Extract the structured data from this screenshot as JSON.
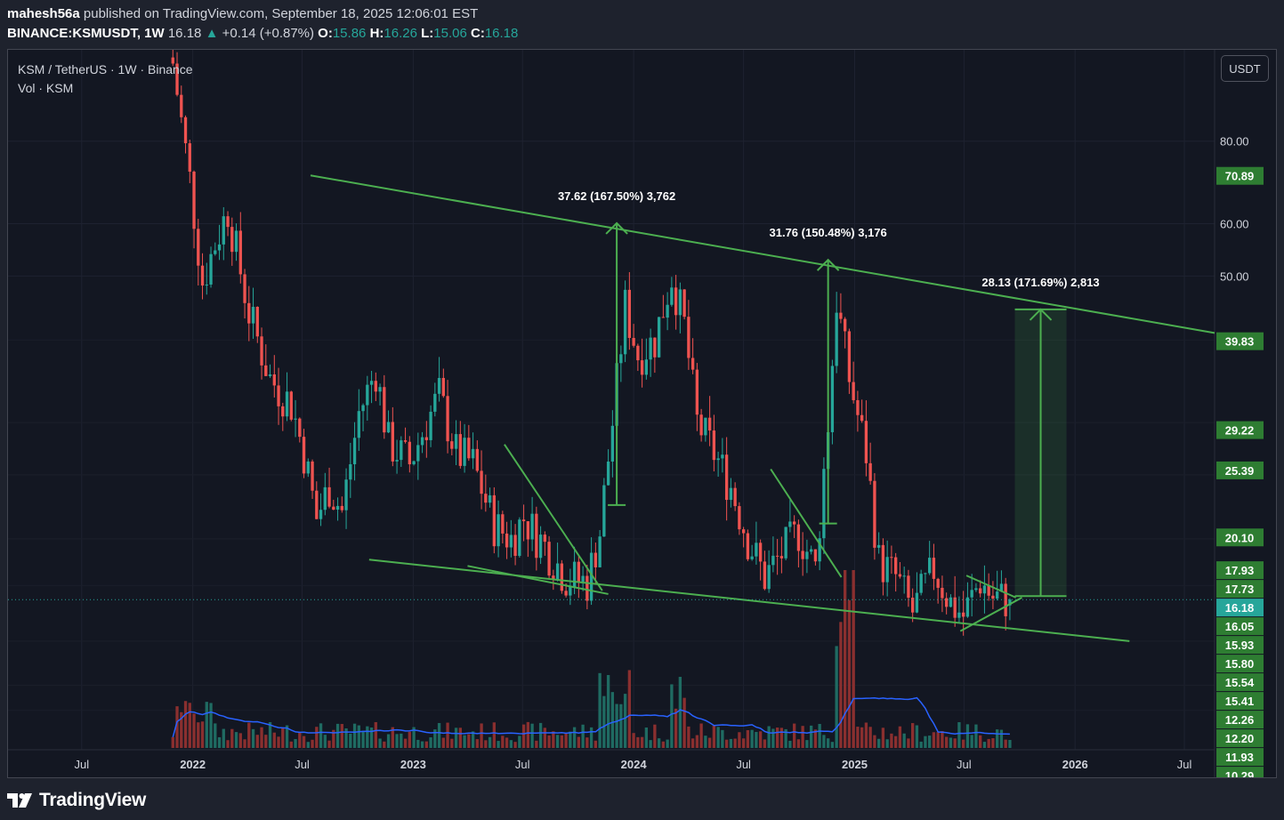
{
  "header": {
    "author": "mahesh56a",
    "published_text": "published on TradingView.com, September 18, 2025 12:06:01 EST",
    "symbol": "BINANCE:KSMUSDT, 1W",
    "last": "16.18",
    "change_arrow": "▲",
    "change": "+0.14 (+0.87%)",
    "o_label": "O:",
    "o_value": "15.86",
    "h_label": "H:",
    "h_value": "16.26",
    "l_label": "L:",
    "l_value": "15.06",
    "c_label": "C:",
    "c_value": "16.18"
  },
  "legend": {
    "title": "KSM / TetherUS · 1W · Binance",
    "volume": "Vol · KSM"
  },
  "currency_button": "USDT",
  "footer": {
    "brand": "TradingView",
    "logo_icon": "tradingview-logo-icon"
  },
  "colors": {
    "up": "#26a69a",
    "down": "#ef5350",
    "drawing": "#4caf50",
    "volume_ma": "#2962ff",
    "background": "#131722"
  },
  "chart_data": {
    "type": "candlestick",
    "symbol": "KSM / TetherUS",
    "interval": "1W",
    "y_scale": "log",
    "ylim": [
      9.5,
      110
    ],
    "y_ticks": [
      80,
      60,
      50
    ],
    "y_tick_labels": [
      "80.00",
      "60.00",
      "50.00"
    ],
    "x_tick_labels": [
      "Jul",
      "2022",
      "Jul",
      "2023",
      "Jul",
      "2024",
      "Jul",
      "2025",
      "Jul",
      "2026",
      "Jul"
    ],
    "x_tick_dates": [
      "2021-07-01",
      "2022-01-01",
      "2022-07-01",
      "2023-01-01",
      "2023-07-01",
      "2024-01-01",
      "2024-07-01",
      "2025-01-01",
      "2025-07-01",
      "2026-01-01",
      "2026-07-01"
    ],
    "x_range": [
      "2021-03-01",
      "2026-08-20"
    ],
    "price_badges": [
      {
        "label": "70.89",
        "value": 70.89
      },
      {
        "label": "39.83",
        "value": 39.83
      },
      {
        "label": "29.22",
        "value": 29.22
      },
      {
        "label": "25.39",
        "value": 25.39
      },
      {
        "label": "20.10",
        "value": 20.1
      },
      {
        "label": "17.93",
        "value": 17.93
      },
      {
        "label": "17.73",
        "value": 17.73
      },
      {
        "label": "16.18",
        "value": 16.18,
        "current": true
      },
      {
        "label": "16.05",
        "value": 16.05
      },
      {
        "label": "15.93",
        "value": 15.93
      },
      {
        "label": "15.80",
        "value": 15.8
      },
      {
        "label": "15.54",
        "value": 15.54
      },
      {
        "label": "15.41",
        "value": 15.41
      },
      {
        "label": "12.26",
        "value": 12.26
      },
      {
        "label": "12.20",
        "value": 12.2
      },
      {
        "label": "11.93",
        "value": 11.93
      },
      {
        "label": "10.29",
        "value": 10.29
      }
    ],
    "current_price": 16.18,
    "annotations": [
      {
        "label": "37.62 (167.50%) 3,762",
        "date": "2023-12-04",
        "from": 22.5,
        "to": 60.1
      },
      {
        "label": "31.76 (150.48%) 3,176",
        "date": "2024-11-18",
        "from": 21.1,
        "to": 52.9
      },
      {
        "label": "28.13 (171.69%) 2,813",
        "date": "2025-11-05",
        "from": 16.38,
        "to": 44.5
      }
    ],
    "trendlines": [
      {
        "name": "falling wedge top",
        "start": [
          "2022-07-15",
          71
        ],
        "end": [
          "2026-08-20",
          41
        ]
      },
      {
        "name": "falling wedge bottom",
        "start": [
          "2022-10-20",
          18.6
        ],
        "end": [
          "2026-04-01",
          14.0
        ]
      },
      {
        "name": "flag 2023 top",
        "start": [
          "2023-06-01",
          27.8
        ],
        "end": [
          "2023-11-10",
          16.7
        ]
      },
      {
        "name": "flag 2023 bottom",
        "start": [
          "2023-04-01",
          18.2
        ],
        "end": [
          "2023-11-20",
          16.5
        ]
      },
      {
        "name": "flag 2024 top",
        "start": [
          "2024-08-15",
          25.5
        ],
        "end": [
          "2024-12-10",
          17.5
        ]
      },
      {
        "name": "triangle 2025 top",
        "start": [
          "2025-07-05",
          17.6
        ],
        "end": [
          "2025-09-25",
          16.3
        ]
      },
      {
        "name": "triangle 2025 bottom",
        "start": [
          "2025-06-25",
          14.5
        ],
        "end": [
          "2025-10-05",
          16.3
        ]
      }
    ],
    "weekly_close_path": [
      {
        "date": "2021-11-29",
        "price": 105
      },
      {
        "date": "2021-12-27",
        "price": 70
      },
      {
        "date": "2022-01-17",
        "price": 49
      },
      {
        "date": "2022-02-07",
        "price": 56
      },
      {
        "date": "2022-02-28",
        "price": 63
      },
      {
        "date": "2022-04-04",
        "price": 44
      },
      {
        "date": "2022-05-09",
        "price": 35
      },
      {
        "date": "2022-06-13",
        "price": 32
      },
      {
        "date": "2022-07-04",
        "price": 27
      },
      {
        "date": "2022-07-25",
        "price": 21.5
      },
      {
        "date": "2022-08-15",
        "price": 24
      },
      {
        "date": "2022-09-05",
        "price": 22
      },
      {
        "date": "2022-10-03",
        "price": 31
      },
      {
        "date": "2022-10-31",
        "price": 36
      },
      {
        "date": "2022-11-21",
        "price": 28
      },
      {
        "date": "2022-12-26",
        "price": 26
      },
      {
        "date": "2023-01-23",
        "price": 30
      },
      {
        "date": "2023-02-13",
        "price": 33
      },
      {
        "date": "2023-03-13",
        "price": 27
      },
      {
        "date": "2023-04-10",
        "price": 26
      },
      {
        "date": "2023-05-15",
        "price": 21
      },
      {
        "date": "2023-06-12",
        "price": 20
      },
      {
        "date": "2023-07-03",
        "price": 21.5
      },
      {
        "date": "2023-08-07",
        "price": 19.5
      },
      {
        "date": "2023-09-11",
        "price": 17.5
      },
      {
        "date": "2023-10-16",
        "price": 17.2
      },
      {
        "date": "2023-11-06",
        "price": 20.5
      },
      {
        "date": "2023-11-27",
        "price": 30
      },
      {
        "date": "2023-12-18",
        "price": 45
      },
      {
        "date": "2024-01-08",
        "price": 38
      },
      {
        "date": "2024-02-05",
        "price": 40
      },
      {
        "date": "2024-03-04",
        "price": 50
      },
      {
        "date": "2024-03-25",
        "price": 42
      },
      {
        "date": "2024-04-15",
        "price": 30
      },
      {
        "date": "2024-05-13",
        "price": 27
      },
      {
        "date": "2024-06-10",
        "price": 24
      },
      {
        "date": "2024-07-08",
        "price": 20
      },
      {
        "date": "2024-08-05",
        "price": 17.5
      },
      {
        "date": "2024-09-02",
        "price": 19
      },
      {
        "date": "2024-09-30",
        "price": 20.5
      },
      {
        "date": "2024-10-28",
        "price": 18
      },
      {
        "date": "2024-11-18",
        "price": 30
      },
      {
        "date": "2024-12-02",
        "price": 46
      },
      {
        "date": "2024-12-23",
        "price": 35
      },
      {
        "date": "2025-01-20",
        "price": 27
      },
      {
        "date": "2025-02-10",
        "price": 18.5
      },
      {
        "date": "2025-03-10",
        "price": 17.5
      },
      {
        "date": "2025-04-07",
        "price": 15.5
      },
      {
        "date": "2025-05-12",
        "price": 18
      },
      {
        "date": "2025-06-09",
        "price": 16
      },
      {
        "date": "2025-06-30",
        "price": 15.3
      },
      {
        "date": "2025-07-28",
        "price": 17.3
      },
      {
        "date": "2025-08-18",
        "price": 16.3
      },
      {
        "date": "2025-09-15",
        "price": 16.18
      }
    ]
  }
}
